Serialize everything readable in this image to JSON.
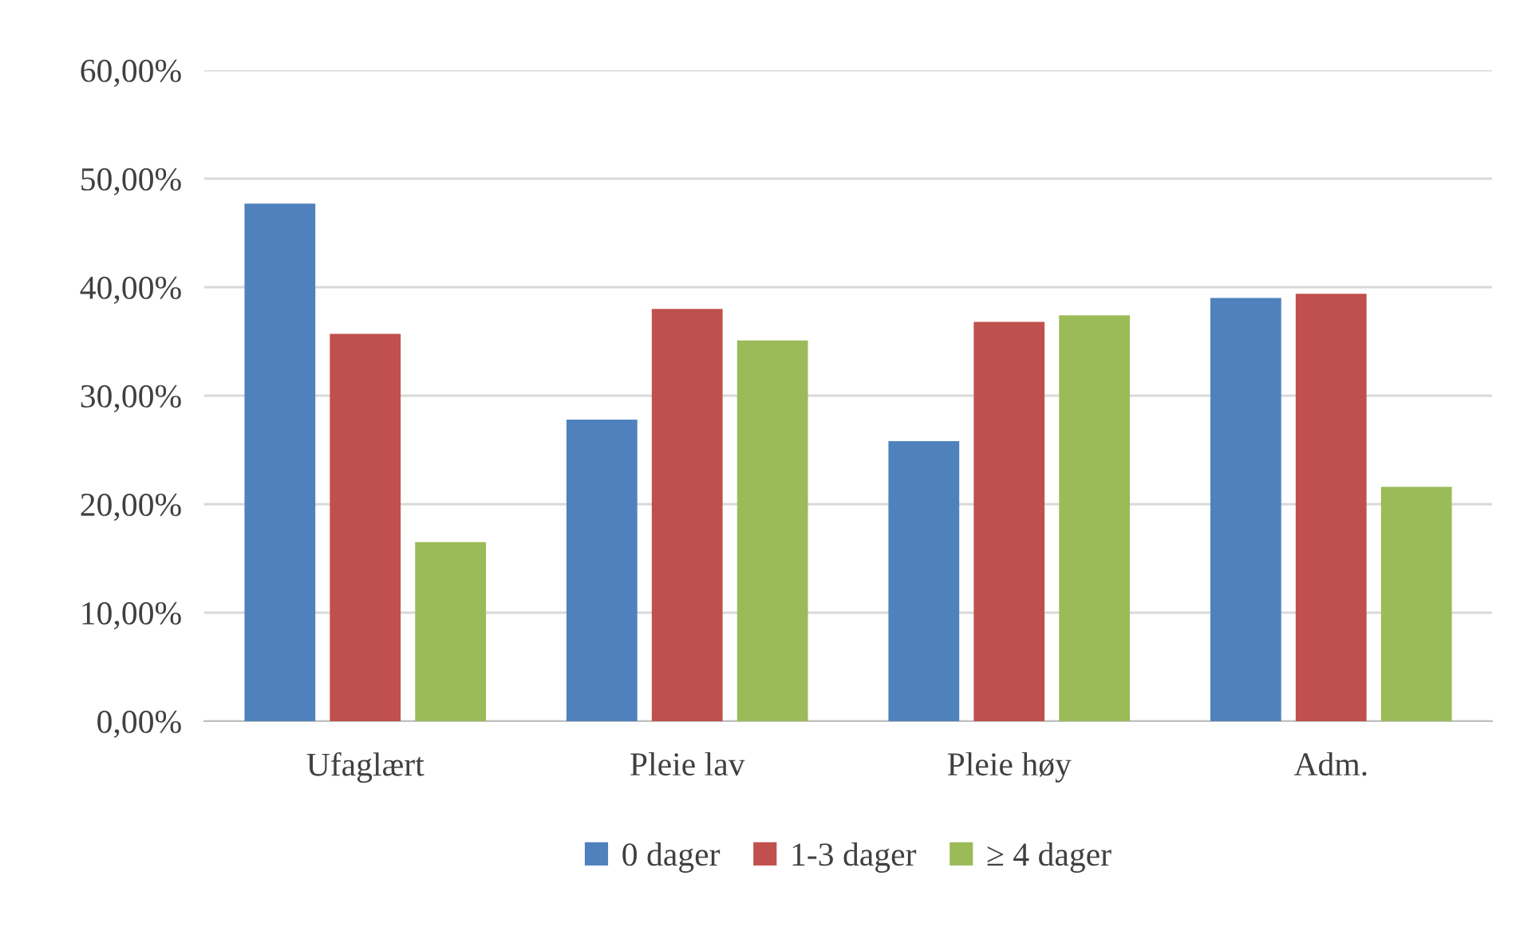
{
  "chart_data": {
    "type": "bar",
    "categories": [
      "Ufaglært",
      "Pleie lav",
      "Pleie høy",
      "Adm."
    ],
    "series": [
      {
        "name": "0 dager",
        "color": "#4f81bd",
        "values": [
          47.7,
          27.8,
          25.8,
          39.0
        ]
      },
      {
        "name": "1-3 dager",
        "color": "#c0504d",
        "values": [
          35.7,
          38.0,
          36.8,
          39.4
        ]
      },
      {
        "name": "≥ 4 dager",
        "color": "#9bbb59",
        "values": [
          16.5,
          35.1,
          37.4,
          21.6
        ]
      }
    ],
    "ylim": [
      0,
      60
    ],
    "yticks": [
      {
        "value": 0,
        "label": "0,00%"
      },
      {
        "value": 10,
        "label": "10,00%"
      },
      {
        "value": 20,
        "label": "20,00%"
      },
      {
        "value": 30,
        "label": "30,00%"
      },
      {
        "value": 40,
        "label": "40,00%"
      },
      {
        "value": 50,
        "label": "50,00%"
      },
      {
        "value": 60,
        "label": "60,00%"
      }
    ],
    "grid": "y",
    "legend": "bottom"
  }
}
